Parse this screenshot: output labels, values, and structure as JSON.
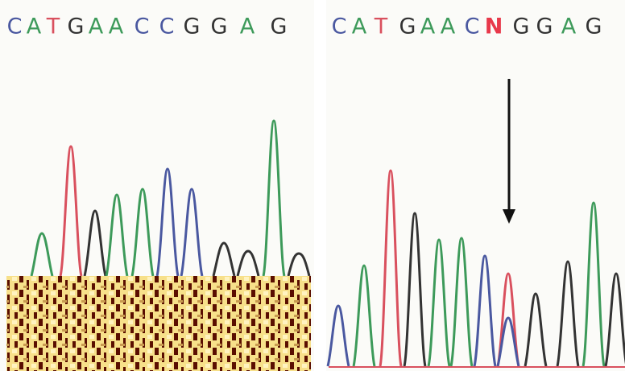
{
  "panels": [
    {
      "bases": [
        {
          "letter": "C",
          "color": "#4a58a0"
        },
        {
          "letter": "A",
          "color": "#3d9a5a"
        },
        {
          "letter": "T",
          "color": "#d9505e"
        },
        {
          "letter": "G",
          "color": "#333333"
        },
        {
          "letter": "A",
          "color": "#3d9a5a"
        },
        {
          "letter": "A",
          "color": "#3d9a5a"
        },
        {
          "letter": "C",
          "color": "#4a58a0"
        },
        {
          "letter": "C",
          "color": "#4a58a0"
        },
        {
          "letter": "G",
          "color": "#333333"
        },
        {
          "letter": "G",
          "color": "#333333"
        },
        {
          "letter": "A",
          "color": "#3d9a5a"
        },
        {
          "letter": "G",
          "color": "#333333"
        }
      ]
    },
    {
      "bases": [
        {
          "letter": "C",
          "color": "#4a58a0"
        },
        {
          "letter": "A",
          "color": "#3d9a5a"
        },
        {
          "letter": "T",
          "color": "#d9505e"
        },
        {
          "letter": "G",
          "color": "#333333"
        },
        {
          "letter": "A",
          "color": "#3d9a5a"
        },
        {
          "letter": "A",
          "color": "#3d9a5a"
        },
        {
          "letter": "C",
          "color": "#4a58a0"
        },
        {
          "letter": "N",
          "color": "#e8384a"
        },
        {
          "letter": "G",
          "color": "#333333"
        },
        {
          "letter": "G",
          "color": "#333333"
        },
        {
          "letter": "A",
          "color": "#3d9a5a"
        },
        {
          "letter": "G",
          "color": "#333333"
        }
      ]
    }
  ]
}
